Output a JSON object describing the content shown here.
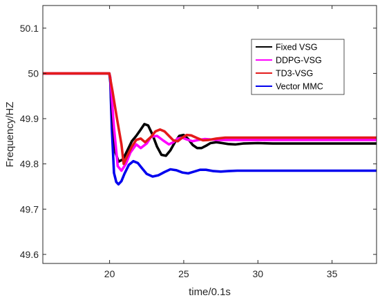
{
  "chart_data": {
    "type": "line",
    "xlabel": "time/0.1s",
    "ylabel": "Frequency/HZ",
    "xlim": [
      15.5,
      38
    ],
    "ylim": [
      49.58,
      50.15
    ],
    "xticks": [
      20,
      25,
      30,
      35
    ],
    "yticks": [
      49.6,
      49.7,
      49.8,
      49.9,
      50,
      50.1
    ],
    "xtick_labels": [
      "20",
      "25",
      "30",
      "35"
    ],
    "ytick_labels": [
      "49.6",
      "49.7",
      "49.8",
      "49.9",
      "50",
      "50.1"
    ],
    "grid": false,
    "legend_position": "top-right",
    "series": [
      {
        "name": "Fixed VSG",
        "color": "#000000",
        "x": [
          15.5,
          19.98,
          20.05,
          20.2,
          20.4,
          20.6,
          20.9,
          21.2,
          21.5,
          21.8,
          22.1,
          22.35,
          22.6,
          22.9,
          23.2,
          23.5,
          23.8,
          24.1,
          24.4,
          24.7,
          25.0,
          25.3,
          25.6,
          25.9,
          26.2,
          26.5,
          26.8,
          27.2,
          27.6,
          28.0,
          28.5,
          29.0,
          30.0,
          31.0,
          33.0,
          35.0,
          38.0
        ],
        "y": [
          50.0,
          50.0,
          49.99,
          49.9,
          49.825,
          49.805,
          49.81,
          49.83,
          49.85,
          49.862,
          49.876,
          49.888,
          49.885,
          49.864,
          49.838,
          49.82,
          49.818,
          49.83,
          49.848,
          49.862,
          49.864,
          49.855,
          49.842,
          49.835,
          49.835,
          49.84,
          49.846,
          49.848,
          49.846,
          49.844,
          49.843,
          49.845,
          49.846,
          49.845,
          49.845,
          49.845,
          49.845
        ]
      },
      {
        "name": "DDPG-VSG",
        "color": "#ff00ff",
        "x": [
          15.5,
          19.98,
          20.05,
          20.3,
          20.55,
          20.8,
          21.1,
          21.4,
          21.8,
          22.1,
          22.5,
          22.8,
          23.2,
          23.6,
          24.0,
          24.3,
          24.6,
          24.9,
          25.2,
          25.6,
          26.0,
          26.4,
          26.8,
          27.3,
          28.0,
          30.0,
          33.0,
          38.0
        ],
        "y": [
          50.0,
          50.0,
          49.99,
          49.88,
          49.795,
          49.785,
          49.8,
          49.825,
          49.843,
          49.835,
          49.845,
          49.86,
          49.862,
          49.852,
          49.843,
          49.848,
          49.856,
          49.858,
          49.854,
          49.85,
          49.853,
          49.855,
          49.854,
          49.853,
          49.853,
          49.853,
          49.853,
          49.853
        ]
      },
      {
        "name": "TD3-VSG",
        "color": "#e41a1a",
        "x": [
          15.5,
          19.98,
          20.2,
          20.5,
          20.8,
          20.95,
          21.2,
          21.5,
          21.8,
          22.1,
          22.4,
          22.8,
          23.1,
          23.4,
          23.7,
          24.0,
          24.3,
          24.6,
          24.9,
          25.2,
          25.5,
          25.9,
          26.3,
          26.7,
          27.2,
          27.8,
          28.5,
          30.0,
          33.0,
          38.0
        ],
        "y": [
          50.0,
          50.0,
          49.96,
          49.9,
          49.843,
          49.8,
          49.818,
          49.838,
          49.853,
          49.856,
          49.848,
          49.86,
          49.872,
          49.876,
          49.872,
          49.862,
          49.852,
          49.85,
          49.858,
          49.864,
          49.863,
          49.857,
          49.852,
          49.853,
          49.856,
          49.858,
          49.858,
          49.858,
          49.858,
          49.858
        ]
      },
      {
        "name": "Vector MMC",
        "color": "#0000ee",
        "x": [
          15.5,
          19.98,
          20.05,
          20.15,
          20.3,
          20.45,
          20.6,
          20.8,
          21.0,
          21.3,
          21.6,
          21.9,
          22.2,
          22.5,
          22.9,
          23.3,
          23.7,
          24.1,
          24.5,
          24.9,
          25.3,
          25.7,
          26.1,
          26.5,
          27.0,
          27.5,
          28.0,
          28.6,
          29.2,
          30.0,
          32.0,
          35.0,
          38.0
        ],
        "y": [
          50.0,
          50.0,
          49.98,
          49.88,
          49.78,
          49.76,
          49.755,
          49.762,
          49.778,
          49.798,
          49.806,
          49.802,
          49.79,
          49.778,
          49.772,
          49.775,
          49.782,
          49.788,
          49.786,
          49.781,
          49.779,
          49.783,
          49.787,
          49.787,
          49.784,
          49.783,
          49.784,
          49.785,
          49.785,
          49.785,
          49.785,
          49.785,
          49.785
        ]
      }
    ]
  }
}
